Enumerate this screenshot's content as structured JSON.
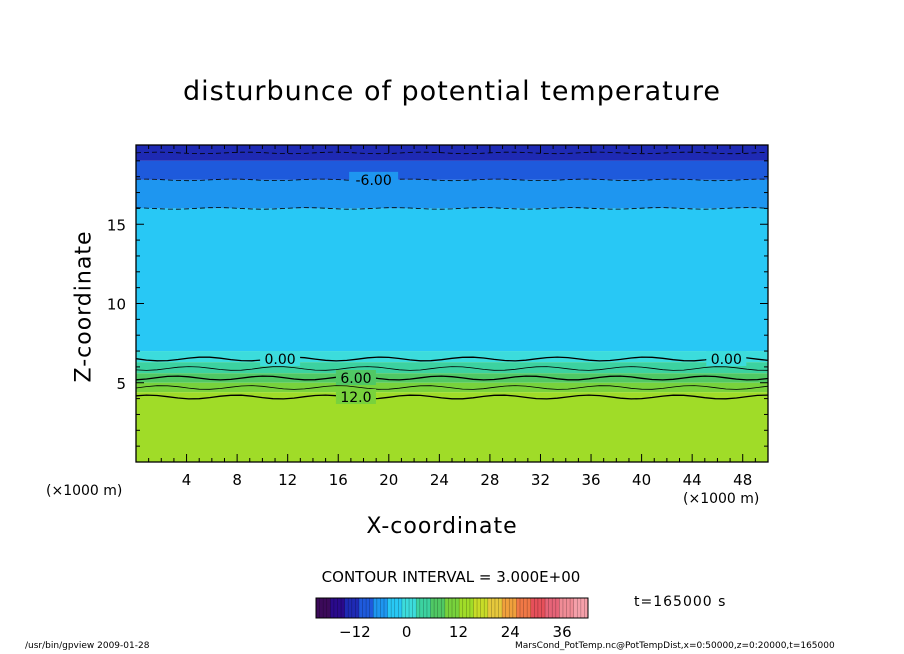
{
  "chart_data": {
    "type": "heatmap",
    "title": "disturbunce of potential temperature",
    "xlabel": "X-coordinate",
    "ylabel": "Z-coordinate",
    "x_unit_label": "(×1000 m)",
    "xlim": [
      0,
      50
    ],
    "ylim": [
      0,
      20
    ],
    "x_ticks": [
      4,
      8,
      12,
      16,
      20,
      24,
      28,
      32,
      36,
      40,
      44,
      48
    ],
    "y_ticks": [
      5,
      10,
      15
    ],
    "contour_interval_label": "CONTOUR INTERVAL = 3.000E+00",
    "contour_labels": [
      {
        "text": "-6.00",
        "x": 18.8,
        "z": 17.8
      },
      {
        "text": "0.00",
        "x": 11.4,
        "z": 6.5
      },
      {
        "text": "0.00",
        "x": 46.7,
        "z": 6.5
      },
      {
        "text": "6.00",
        "x": 17.4,
        "z": 5.3
      },
      {
        "text": "12.0",
        "x": 17.4,
        "z": 4.1
      }
    ],
    "contour_levels": [
      {
        "level": -9,
        "z": 19.5,
        "style": "dashed"
      },
      {
        "level": -6,
        "z": 17.8,
        "style": "dashed"
      },
      {
        "level": -3,
        "z": 16.0,
        "style": "dashed"
      },
      {
        "level": 0,
        "z": 6.5,
        "style": "solid"
      },
      {
        "level": 3,
        "z": 5.9,
        "style": "solid"
      },
      {
        "level": 6,
        "z": 5.3,
        "style": "solid"
      },
      {
        "level": 9,
        "z": 4.7,
        "style": "solid"
      },
      {
        "level": 12,
        "z": 4.1,
        "style": "solid"
      }
    ],
    "field_bands": [
      {
        "z_from": 19.0,
        "z_to": 20.0,
        "value": -12
      },
      {
        "z_from": 17.8,
        "z_to": 19.0,
        "value": -9
      },
      {
        "z_from": 16.0,
        "z_to": 17.8,
        "value": -6
      },
      {
        "z_from": 7.0,
        "z_to": 16.0,
        "value": -3
      },
      {
        "z_from": 6.3,
        "z_to": 7.0,
        "value": 0
      },
      {
        "z_from": 5.6,
        "z_to": 6.3,
        "value": 3
      },
      {
        "z_from": 5.0,
        "z_to": 5.6,
        "value": 6
      },
      {
        "z_from": 4.4,
        "z_to": 5.0,
        "value": 9
      },
      {
        "z_from": 0.0,
        "z_to": 4.4,
        "value": 15
      }
    ],
    "colorbar": {
      "ticks": [
        -12,
        0,
        12,
        24,
        36
      ],
      "range": [
        -21,
        42
      ],
      "colors": [
        "#3c0a5a",
        "#2a0a8c",
        "#1e2ab4",
        "#1e5adc",
        "#1e96f0",
        "#28c8f5",
        "#3cdcdc",
        "#3cd2a0",
        "#50c864",
        "#78d23c",
        "#a0dc28",
        "#c8dc28",
        "#e6c83c",
        "#f0a03c",
        "#f07846",
        "#e6505a",
        "#e66478",
        "#f08c96",
        "#f5a0aa"
      ]
    },
    "time_label": "t=165000 s"
  },
  "footer": {
    "left": "/usr/bin/gpview  2009-01-28",
    "right": "MarsCond_PotTemp.nc@PotTempDist,x=0:50000,z=0:20000,t=165000"
  }
}
